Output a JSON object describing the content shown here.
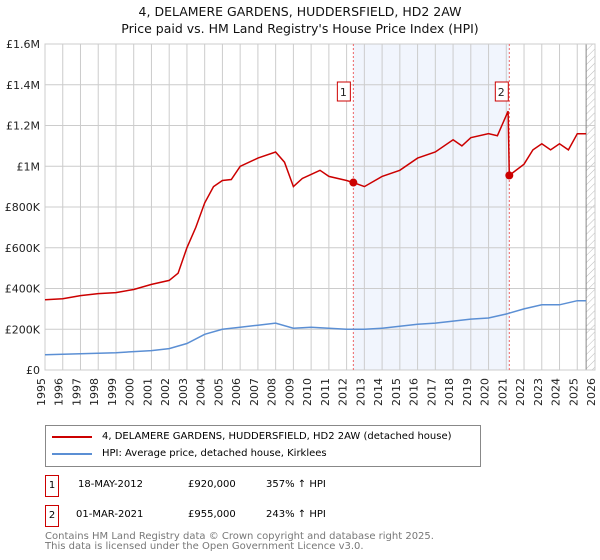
{
  "title_line1": "4, DELAMERE GARDENS, HUDDERSFIELD, HD2 2AW",
  "title_line2": "Price paid vs. HM Land Registry's House Price Index (HPI)",
  "chart_data": {
    "type": "line",
    "xlim": [
      1995,
      2026
    ],
    "ylim": [
      0,
      1600000
    ],
    "yticks": [
      0,
      200000,
      400000,
      600000,
      800000,
      1000000,
      1200000,
      1400000,
      1600000
    ],
    "ytick_labels": [
      "£0",
      "£200K",
      "£400K",
      "£600K",
      "£800K",
      "£1M",
      "£1.2M",
      "£1.4M",
      "£1.6M"
    ],
    "xticks": [
      "1995",
      "1996",
      "1997",
      "1998",
      "1999",
      "2000",
      "2001",
      "2002",
      "2003",
      "2004",
      "2005",
      "2006",
      "2007",
      "2008",
      "2009",
      "2010",
      "2011",
      "2012",
      "2013",
      "2014",
      "2015",
      "2016",
      "2017",
      "2018",
      "2019",
      "2020",
      "2021",
      "2022",
      "2023",
      "2024",
      "2025",
      "2026"
    ],
    "grid": true,
    "shaded_range": [
      2012.38,
      2021.17
    ],
    "hatched_from": 2025.5,
    "series": [
      {
        "name": "4, DELAMERE GARDENS, HUDDERSFIELD, HD2 2AW (detached house)",
        "color": "#cc0000",
        "x": [
          1995,
          1996,
          1997,
          1998,
          1999,
          2000,
          2001,
          2002,
          2002.5,
          2003,
          2003.5,
          2004,
          2004.5,
          2005,
          2005.5,
          2006,
          2007,
          2008,
          2008.5,
          2009,
          2009.5,
          2010,
          2010.5,
          2011,
          2012,
          2012.38,
          2013,
          2014,
          2015,
          2016,
          2017,
          2018,
          2018.5,
          2019,
          2020,
          2020.5,
          2021.1,
          2021.17,
          2022,
          2022.5,
          2023,
          2023.5,
          2024,
          2024.5,
          2025,
          2025.5
        ],
        "y": [
          345000,
          350000,
          365000,
          375000,
          380000,
          395000,
          420000,
          440000,
          475000,
          600000,
          700000,
          820000,
          900000,
          930000,
          935000,
          1000000,
          1040000,
          1070000,
          1020000,
          900000,
          940000,
          960000,
          980000,
          950000,
          930000,
          920000,
          900000,
          950000,
          980000,
          1040000,
          1070000,
          1130000,
          1100000,
          1140000,
          1160000,
          1150000,
          1270000,
          955000,
          1010000,
          1080000,
          1110000,
          1080000,
          1110000,
          1080000,
          1160000,
          1160000
        ]
      },
      {
        "name": "HPI: Average price, detached house, Kirklees",
        "color": "#5b8fd4",
        "x": [
          1995,
          1997,
          1999,
          2001,
          2002,
          2003,
          2004,
          2005,
          2006,
          2007,
          2008,
          2009,
          2010,
          2011,
          2012,
          2013,
          2014,
          2015,
          2016,
          2017,
          2018,
          2019,
          2020,
          2021,
          2022,
          2023,
          2024,
          2025,
          2025.5
        ],
        "y": [
          75000,
          80000,
          85000,
          95000,
          105000,
          130000,
          175000,
          200000,
          210000,
          220000,
          230000,
          205000,
          210000,
          205000,
          200000,
          200000,
          205000,
          215000,
          225000,
          230000,
          240000,
          250000,
          255000,
          275000,
          300000,
          320000,
          320000,
          340000,
          340000
        ]
      }
    ],
    "markers": [
      {
        "label": "1",
        "x": 2012.38,
        "y": 920000
      },
      {
        "label": "2",
        "x": 2021.17,
        "y": 955000
      }
    ]
  },
  "legend": {
    "red_label": "4, DELAMERE GARDENS, HUDDERSFIELD, HD2 2AW (detached house)",
    "blue_label": "HPI: Average price, detached house, Kirklees"
  },
  "transactions": [
    {
      "num": "1",
      "date": "18-MAY-2012",
      "price": "£920,000",
      "hpi": "357% ↑ HPI"
    },
    {
      "num": "2",
      "date": "01-MAR-2021",
      "price": "£955,000",
      "hpi": "243% ↑ HPI"
    }
  ],
  "footer_line1": "Contains HM Land Registry data © Crown copyright and database right 2025.",
  "footer_line2": "This data is licensed under the Open Government Licence v3.0."
}
